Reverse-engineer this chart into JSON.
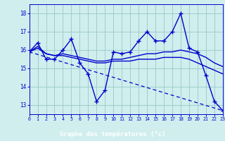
{
  "bg_color": "#d0eeee",
  "line_color": "#0000cc",
  "grid_color": "#a0cccc",
  "xlabel": "Graphe des températures (°c)",
  "xlabel_bg": "#0000bb",
  "xlabel_fg": "#ffffff",
  "yticks": [
    13,
    14,
    15,
    16,
    17,
    18
  ],
  "xticks": [
    0,
    1,
    2,
    3,
    4,
    5,
    6,
    7,
    8,
    9,
    10,
    11,
    12,
    13,
    14,
    15,
    16,
    17,
    18,
    19,
    20,
    21,
    22,
    23
  ],
  "xlim": [
    0,
    23
  ],
  "ylim": [
    12.5,
    18.5
  ],
  "curve1_x": [
    0,
    1,
    2,
    3,
    4,
    5,
    6,
    7,
    8,
    9,
    10,
    11,
    12,
    13,
    14,
    15,
    16,
    17,
    18,
    19,
    20,
    21,
    22,
    23
  ],
  "curve1_y": [
    15.9,
    16.4,
    15.5,
    15.5,
    16.0,
    16.6,
    15.3,
    14.7,
    13.2,
    13.8,
    15.9,
    15.8,
    15.9,
    16.5,
    17.0,
    16.5,
    16.5,
    17.0,
    18.0,
    16.1,
    15.9,
    14.6,
    13.2,
    12.7
  ],
  "curve2_x": [
    0,
    1,
    2,
    3,
    4,
    5,
    6,
    7,
    8,
    9,
    10,
    11,
    12,
    13,
    14,
    15,
    16,
    17,
    18,
    19,
    20,
    21,
    22,
    23
  ],
  "curve2_y": [
    15.9,
    16.2,
    15.8,
    15.7,
    15.8,
    15.7,
    15.6,
    15.5,
    15.4,
    15.4,
    15.5,
    15.5,
    15.6,
    15.7,
    15.8,
    15.8,
    15.9,
    15.9,
    16.0,
    15.9,
    15.8,
    15.6,
    15.3,
    15.1
  ],
  "curve3_x": [
    0,
    23
  ],
  "curve3_y": [
    15.9,
    12.7
  ],
  "curve4_x": [
    0,
    1,
    2,
    3,
    4,
    5,
    6,
    7,
    8,
    9,
    10,
    11,
    12,
    13,
    14,
    15,
    16,
    17,
    18,
    19,
    20,
    21,
    22,
    23
  ],
  "curve4_y": [
    15.9,
    16.1,
    15.8,
    15.7,
    15.7,
    15.6,
    15.5,
    15.4,
    15.3,
    15.3,
    15.4,
    15.4,
    15.4,
    15.5,
    15.5,
    15.5,
    15.6,
    15.6,
    15.6,
    15.5,
    15.3,
    15.1,
    14.9,
    14.7
  ]
}
